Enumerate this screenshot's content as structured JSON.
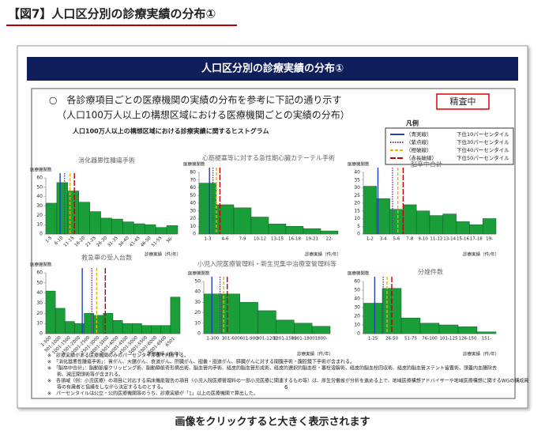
{
  "header": "【図7】人口区分別の診療実績の分布①",
  "slide_title": "人口区分別の診療実績の分布①",
  "bullet": "○　各診療項目ごとの医療機関の実績の分布を参考に下記の通り示す",
  "bullet_sub": "（人口100万人以上の構想区域における医療機関ごとの実績の分布）",
  "status": "精査中",
  "histogram_title": "人口100万人以上の構想区域における診療実績に関するヒストグラム",
  "legend": {
    "title": "凡例",
    "items": [
      {
        "name": "（青実線）",
        "label": "下位10パーセンタイル",
        "color": "#1f3fbf",
        "dash": "solid"
      },
      {
        "name": "（紫点線）",
        "label": "下位30パーセンタイル",
        "color": "#7030a0",
        "dash": "dotted"
      },
      {
        "name": "（橙破線）",
        "label": "下位40パーセンタイル",
        "color": "#f0b000",
        "dash": "dashed"
      },
      {
        "name": "（赤長破線）",
        "label": "下位50パーセンタイル",
        "color": "#c00000",
        "dash": "longdash"
      }
    ]
  },
  "notes": [
    "※　診療実績がある医療機関のみのパーセンタイル値で判断する。",
    "※　「消化器悪性腫瘍手術」：胃がん、大腸がん、食道がん、肝臓がん、胆嚢・胆道がん、膵臓がんに対する開腹手術・腹腔鏡下手術が含まれる。",
    "※　「脳卒中合計」：脳動脈瘤クリッピング術、脳動静脈奇形摘出術、脳血管内手術、経皮的脳血管形成術、経皮的選択的脳血栓・塞栓溶解術、経皮的脳血栓回収術、経皮的脳血管ステント留置術、頭蓋内血腫除去",
    "　　術、減圧開頭術等が含まれる。",
    "※　各領域（例：小児医療）の項目に対応する病床機能報告の項目（小児入院医療管理料の一部小児医療に関連するもの等）は、厚生労働省が分析を進める上で、地域医療構想アドバイザーや地域医療構想に関するWGの構成員",
    "　　等の有識者と協議をしながら決定するものとする。",
    "※　パーセンタイルは公立・公的医療機関等のうち、診療実績が「1」以上の医療機関で算出した。"
  ],
  "page_number": "6",
  "caption": "画像をクリックすると大きく表示されます",
  "chart_data": [
    {
      "type": "bar",
      "title": "消化器悪性腫瘍手術",
      "ylabel": "医療機関数",
      "xlabel": "診療実績（件/年）",
      "categories": [
        "1-5",
        "6-10",
        "11-15",
        "16-20",
        "21-25",
        "26-30",
        "31-35",
        "36-40",
        "41-45",
        "46-50",
        "51-55",
        "56-"
      ],
      "values": [
        33,
        55,
        46,
        34,
        24,
        17,
        16,
        13,
        11,
        10,
        7,
        9
      ],
      "color": "#1a9e3a",
      "ylim": [
        0,
        60
      ],
      "yticks": [
        0,
        10,
        20,
        30,
        40,
        50,
        60
      ],
      "rotate_labels": true,
      "percentiles": [
        1.3,
        1.7,
        2.2,
        2.6
      ]
    },
    {
      "type": "bar",
      "title": "心筋梗塞等に対する急性期心臓カテーテル手術",
      "ylabel": "医療機関数",
      "xlabel": "診療実績（件/年）",
      "categories": [
        "1-3",
        "4-6",
        "7-9",
        "10-12",
        "13-15",
        "16-18",
        "19-21",
        "22-"
      ],
      "values": [
        66,
        38,
        34,
        22,
        13,
        10,
        7,
        4
      ],
      "color": "#1a9e3a",
      "ylim": [
        0,
        80
      ],
      "yticks": [
        0,
        10,
        20,
        30,
        40,
        50,
        60,
        70,
        80
      ],
      "rotate_labels": false,
      "percentiles": [
        0.6,
        0.8,
        1.0,
        1.2
      ]
    },
    {
      "type": "bar",
      "title": "脳卒中合計",
      "ylabel": "医療機関数",
      "xlabel": "診療実績（件/年）",
      "categories": [
        "1-2",
        "3-4",
        "5-6",
        "7-8",
        "9-10",
        "11-12",
        "13-14",
        "15-16",
        "17-18",
        "19-"
      ],
      "values": [
        31,
        23,
        16,
        19,
        15,
        12,
        13,
        8,
        6,
        10
      ],
      "color": "#1a9e3a",
      "ylim": [
        0,
        40
      ],
      "yticks": [
        0,
        5,
        10,
        15,
        20,
        25,
        30,
        35,
        40
      ],
      "rotate_labels": false,
      "percentiles": [
        1.1,
        2.2,
        2.6,
        3.0
      ]
    },
    {
      "type": "bar",
      "title": "救急車の受入台数",
      "ylabel": "医療機関数",
      "xlabel": "診療実績（件/年）",
      "categories": [
        "1-500",
        "501-1000",
        "1001-1500",
        "1501-2000",
        "2001-2500",
        "2501-3000",
        "3001-3500",
        "3501-4000",
        "4001-4500",
        "4501-5000",
        "5001-5500",
        "5501-6000",
        "6001-6500",
        "6501-"
      ],
      "values": [
        42,
        25,
        12,
        10,
        20,
        18,
        20,
        13,
        10,
        10,
        8,
        8,
        8,
        36
      ],
      "color": "#1a9e3a",
      "ylim": [
        0,
        60
      ],
      "yticks": [
        0,
        10,
        20,
        30,
        40,
        50,
        60
      ],
      "rotate_labels": true,
      "percentiles": [
        3.8,
        4.8,
        5.3,
        6.2
      ]
    },
    {
      "type": "bar",
      "title": "小児入院医療管理料・新生児集中治療室管理料等",
      "ylabel": "医療機関数",
      "xlabel": "診療実績（件/年）",
      "categories": [
        "1-300",
        "301-600",
        "601-900",
        "901-1200",
        "1201-1500",
        "1501-1800",
        "1800-"
      ],
      "values": [
        38,
        38,
        30,
        22,
        13,
        10,
        7
      ],
      "color": "#1a9e3a",
      "ylim": [
        0,
        50
      ],
      "yticks": [
        0,
        10,
        20,
        30,
        40,
        50
      ],
      "rotate_labels": false,
      "percentiles": [
        0.45,
        0.9,
        1.1,
        1.3
      ]
    },
    {
      "type": "bar",
      "title": "分娩件数",
      "ylabel": "医療機関数",
      "xlabel": "診療実績（件/年）",
      "categories": [
        "1-25",
        "26-50",
        "51-75",
        "76-100",
        "101-125",
        "126-150",
        "151-"
      ],
      "values": [
        35,
        52,
        18,
        12,
        10,
        8,
        2
      ],
      "color": "#1a9e3a",
      "ylim": [
        0,
        60
      ],
      "yticks": [
        0,
        10,
        20,
        30,
        40,
        50,
        60
      ],
      "rotate_labels": false,
      "percentiles": [
        0.6,
        1.05,
        1.25,
        1.5
      ]
    }
  ]
}
